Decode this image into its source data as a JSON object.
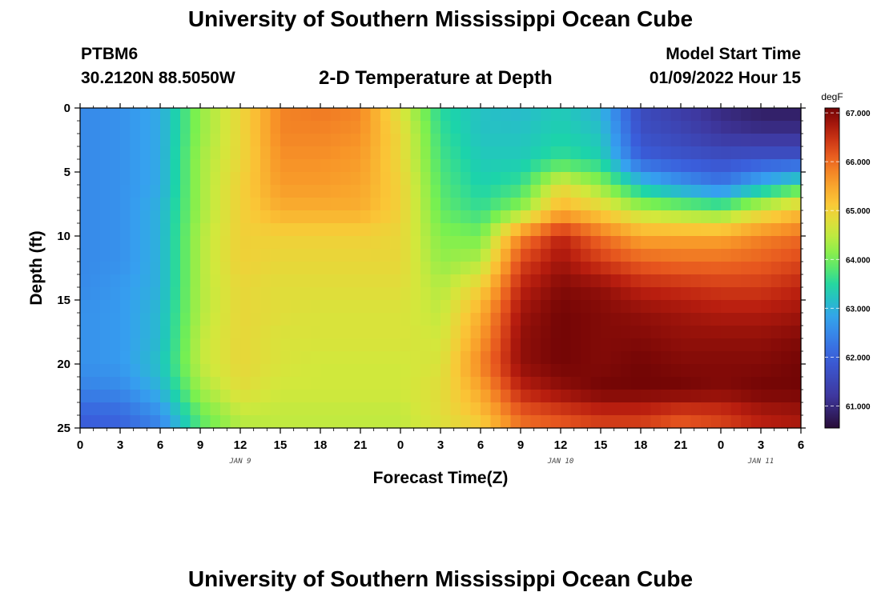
{
  "header": {
    "title": "University of Southern Mississippi Ocean Cube",
    "station": "PTBM6",
    "coords": "30.2120N  88.5050W",
    "subtitle": "2-D Temperature at Depth",
    "model_start_label": "Model Start Time",
    "model_start_value": "01/09/2022 Hour 15",
    "footer_title": "University of Southern Mississippi Ocean Cube"
  },
  "chart_data": {
    "type": "heatmap",
    "title": "2-D Temperature at Depth",
    "xlabel": "Forecast Time(Z)",
    "ylabel": "Depth (ft)",
    "xlim": [
      0,
      54
    ],
    "ylim": [
      0,
      25
    ],
    "x_ticks": [
      0,
      3,
      6,
      9,
      12,
      15,
      18,
      21,
      24,
      27,
      30,
      33,
      36,
      39,
      42,
      45,
      48,
      51,
      54
    ],
    "x_tick_labels": [
      "0",
      "3",
      "6",
      "9",
      "12",
      "15",
      "18",
      "21",
      "0",
      "3",
      "6",
      "9",
      "12",
      "15",
      "18",
      "21",
      "0",
      "3",
      "6"
    ],
    "y_ticks": [
      0,
      5,
      10,
      15,
      20,
      25
    ],
    "y_tick_labels": [
      "0",
      "5",
      "10",
      "15",
      "20",
      "25"
    ],
    "date_labels": [
      {
        "x": 12,
        "label": "JAN 9"
      },
      {
        "x": 36,
        "label": "JAN 10"
      },
      {
        "x": 51,
        "label": "JAN 11"
      }
    ],
    "colorbar": {
      "unit": "degF",
      "min": 60.55,
      "max": 67.1,
      "ticks": [
        61,
        62,
        63,
        64,
        65,
        66,
        67
      ],
      "tick_labels": [
        "61.000",
        "62.000",
        "63.000",
        "64.000",
        "65.000",
        "66.000",
        "67.000"
      ]
    },
    "grid_x_hours": [
      0,
      3,
      6,
      9,
      12,
      15,
      18,
      21,
      24,
      27,
      30,
      33,
      36,
      39,
      42,
      45,
      48,
      51,
      54
    ],
    "grid_y_depths": [
      0,
      2,
      4,
      6,
      8,
      10,
      12,
      14,
      16,
      18,
      20,
      22,
      24,
      25
    ],
    "temperature_degF": [
      [
        62.5,
        62.6,
        62.9,
        64.2,
        64.9,
        65.8,
        65.9,
        65.8,
        64.7,
        63.5,
        63.2,
        63.1,
        63.3,
        63.0,
        61.6,
        61.3,
        61.0,
        60.8,
        60.8
      ],
      [
        62.5,
        62.6,
        62.9,
        64.2,
        64.9,
        65.8,
        65.8,
        65.7,
        64.9,
        63.6,
        63.2,
        63.2,
        63.4,
        63.2,
        61.7,
        61.5,
        61.2,
        61.1,
        61.1
      ],
      [
        62.5,
        62.6,
        62.9,
        64.3,
        64.9,
        65.7,
        65.7,
        65.6,
        64.9,
        63.7,
        63.3,
        63.3,
        63.6,
        63.4,
        62.0,
        61.8,
        61.7,
        61.8,
        61.8
      ],
      [
        62.5,
        62.6,
        62.9,
        64.3,
        65.0,
        65.6,
        65.6,
        65.5,
        65.0,
        63.8,
        63.4,
        63.6,
        64.8,
        64.2,
        63.2,
        62.7,
        62.3,
        63.0,
        63.6
      ],
      [
        62.5,
        62.6,
        63.0,
        64.3,
        65.0,
        65.4,
        65.4,
        65.4,
        65.0,
        63.9,
        63.6,
        64.2,
        65.4,
        65.0,
        64.4,
        64.2,
        64.0,
        64.7,
        65.2
      ],
      [
        62.5,
        62.6,
        63.0,
        64.4,
        65.0,
        65.0,
        65.0,
        65.0,
        64.9,
        64.1,
        64.0,
        65.8,
        66.6,
        66.0,
        65.5,
        65.5,
        65.5,
        65.8,
        66.0
      ],
      [
        62.5,
        62.6,
        63.0,
        64.4,
        65.0,
        64.9,
        64.9,
        64.9,
        64.9,
        64.2,
        64.4,
        66.3,
        66.8,
        66.4,
        66.1,
        66.0,
        66.0,
        66.1,
        66.3
      ],
      [
        62.5,
        62.7,
        63.0,
        64.4,
        64.9,
        64.8,
        64.8,
        64.8,
        64.8,
        64.4,
        65.0,
        66.6,
        67.0,
        66.9,
        66.6,
        66.5,
        66.4,
        66.4,
        66.6
      ],
      [
        62.6,
        62.7,
        63.1,
        64.4,
        64.9,
        64.8,
        64.7,
        64.7,
        64.7,
        64.5,
        65.4,
        66.8,
        67.1,
        67.0,
        66.9,
        66.8,
        66.7,
        66.7,
        66.8
      ],
      [
        62.6,
        62.7,
        63.1,
        64.5,
        64.9,
        64.7,
        64.7,
        64.7,
        64.7,
        64.6,
        65.6,
        66.9,
        67.1,
        67.0,
        67.0,
        66.9,
        66.9,
        66.9,
        67.0
      ],
      [
        62.6,
        62.7,
        63.2,
        64.5,
        64.9,
        64.7,
        64.6,
        64.6,
        64.6,
        64.7,
        65.8,
        66.9,
        67.1,
        67.0,
        67.1,
        67.0,
        67.0,
        67.0,
        67.1
      ],
      [
        62.4,
        62.5,
        63.0,
        64.3,
        64.8,
        64.6,
        64.6,
        64.6,
        64.6,
        64.8,
        65.5,
        66.6,
        66.9,
        67.1,
        67.1,
        67.1,
        67.0,
        67.1,
        67.1
      ],
      [
        62.0,
        62.1,
        62.6,
        63.9,
        64.5,
        64.5,
        64.5,
        64.5,
        64.5,
        64.8,
        65.2,
        66.1,
        66.3,
        66.5,
        66.5,
        66.3,
        66.4,
        66.7,
        66.8
      ],
      [
        61.9,
        62.0,
        62.4,
        63.8,
        64.4,
        64.5,
        64.5,
        64.5,
        64.5,
        64.7,
        65.0,
        65.9,
        66.1,
        66.3,
        66.3,
        66.1,
        66.3,
        66.6,
        66.7
      ]
    ]
  }
}
